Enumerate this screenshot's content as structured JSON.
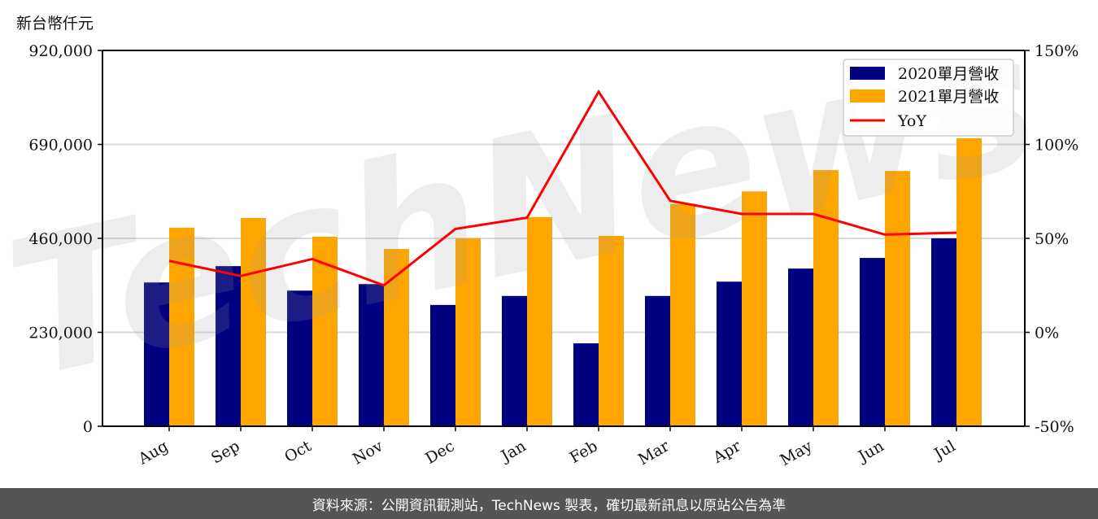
{
  "header": {
    "unit_label": "新台幣仟元"
  },
  "footer": {
    "source_text": "資料來源：公開資訊觀測站，TechNews 製表，確切最新訊息以原站公告為準"
  },
  "watermark": {
    "text": "TechNews"
  },
  "colors": {
    "series_2020": "#000080",
    "series_2021": "#FFA500",
    "yoy": "#FF0000",
    "grid": "#d9d9d9",
    "footer_bg": "#555555"
  },
  "chart_data": {
    "type": "bar+line",
    "title": "",
    "xlabel": "",
    "ylabel": "新台幣仟元",
    "y2label": "",
    "categories": [
      "Aug",
      "Sep",
      "Oct",
      "Nov",
      "Dec",
      "Jan",
      "Feb",
      "Mar",
      "Apr",
      "May",
      "Jun",
      "Jul"
    ],
    "series": [
      {
        "name": "2020單月營收",
        "type": "bar",
        "axis": "left",
        "values": [
          352000,
          392000,
          332000,
          348000,
          297000,
          319000,
          203000,
          319000,
          354000,
          386000,
          412000,
          460000
        ]
      },
      {
        "name": "2021單月營收",
        "type": "bar",
        "axis": "left",
        "values": [
          486000,
          510000,
          464000,
          434000,
          460000,
          512000,
          466000,
          544000,
          575000,
          627000,
          625000,
          705000
        ]
      },
      {
        "name": "YoY",
        "type": "line",
        "axis": "right",
        "unit": "%",
        "values": [
          38,
          30,
          39,
          25,
          55,
          61,
          128,
          70,
          63,
          63,
          52,
          53
        ]
      }
    ],
    "ylim": [
      0,
      920000
    ],
    "y_ticks": [
      0,
      230000,
      460000,
      690000,
      920000
    ],
    "y_tick_labels": [
      "0",
      "230,000",
      "460,000",
      "690,000",
      "920,000"
    ],
    "y2lim": [
      -50,
      150
    ],
    "y2_ticks": [
      -50,
      0,
      50,
      100,
      150
    ],
    "y2_tick_labels": [
      "-50%",
      "0%",
      "50%",
      "100%",
      "150%"
    ],
    "grid": true,
    "legend_position": "upper right",
    "legend": [
      "2020單月營收",
      "2021單月營收",
      "YoY"
    ]
  }
}
